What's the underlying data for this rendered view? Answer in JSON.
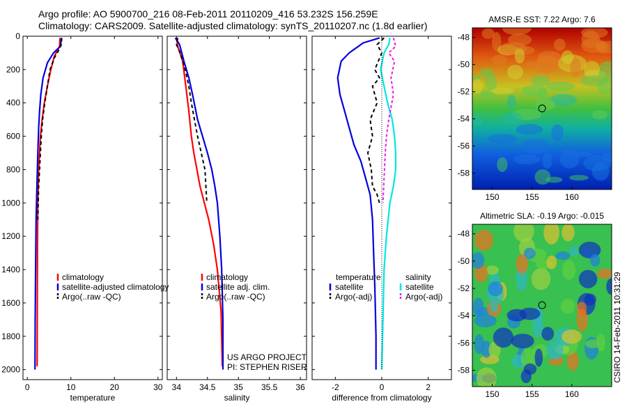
{
  "header": {
    "line1": "Argo profile: AO 5900700_216 08-Feb-2011 20110209_416 53.232S 156.259E",
    "line2": "Climatology: CARS2009. Satellite-adjusted climatology: synTS_20110207.nc (1.8d earlier)"
  },
  "colors": {
    "climatology": "#ff0000",
    "satellite": "#0000dd",
    "argo": "#000000",
    "sat_salinity": "#00e5e5",
    "argo_salinity": "#e61ee6"
  },
  "chart_data": [
    {
      "type": "line",
      "xlabel": "temperature",
      "xlim": [
        -1,
        31
      ],
      "ylim": [
        2060,
        0
      ],
      "xticks": [
        0,
        10,
        20,
        30
      ],
      "yticks": [
        0,
        200,
        400,
        600,
        800,
        1000,
        1200,
        1400,
        1600,
        1800,
        2000
      ],
      "legend": [
        "climatology",
        "satellite-adjusted climatology",
        "Argo(..raw -QC)"
      ],
      "series": [
        {
          "name": "climatology",
          "color": "#ff0000",
          "dash": "",
          "x": [
            7.5,
            7.4,
            6.2,
            5.4,
            4.6,
            3.9,
            3.4,
            3.0,
            2.8,
            2.6,
            2.5,
            2.4,
            2.35,
            2.3,
            2.25
          ],
          "y": [
            10,
            60,
            120,
            200,
            300,
            400,
            500,
            600,
            700,
            800,
            900,
            1000,
            1200,
            1500,
            1980
          ]
        },
        {
          "name": "satellite-adjusted climatology",
          "color": "#0000dd",
          "dash": "",
          "x": [
            7.8,
            7.6,
            6.0,
            4.6,
            3.6,
            3.1,
            2.8,
            2.6,
            2.4,
            2.2,
            2.0,
            1.9,
            1.8,
            1.75
          ],
          "y": [
            10,
            60,
            100,
            160,
            250,
            350,
            450,
            550,
            700,
            900,
            1100,
            1400,
            1700,
            2000
          ]
        },
        {
          "name": "Argo(..raw -QC)",
          "color": "#000000",
          "dash": "5,4",
          "x": [
            7.9,
            7.8,
            7.3,
            6.2,
            5.2,
            4.6,
            4.0,
            3.5,
            3.2,
            3.0,
            2.8,
            2.6,
            2.5,
            2.4
          ],
          "y": [
            10,
            50,
            80,
            130,
            200,
            300,
            400,
            500,
            600,
            700,
            800,
            900,
            1000,
            1100
          ]
        }
      ]
    },
    {
      "type": "line",
      "xlabel": "salinity",
      "xlim": [
        33.85,
        36.1
      ],
      "ylim": [
        2060,
        0
      ],
      "xticks": [
        34,
        34.5,
        35,
        35.5,
        36
      ],
      "xticklabels": [
        "34",
        "34.5",
        "35",
        "35.5",
        "36"
      ],
      "legend": [
        "climatology",
        "satellite adj. clim.",
        "Argo(..raw -QC)"
      ],
      "annotations": [
        "US ARGO PROJECT",
        "PI: STEPHEN RISER"
      ],
      "series": [
        {
          "name": "climatology",
          "color": "#ff0000",
          "dash": "",
          "x": [
            34.0,
            34.02,
            34.1,
            34.15,
            34.2,
            34.24,
            34.28,
            34.33,
            34.38,
            34.45,
            34.52,
            34.6,
            34.66,
            34.72,
            34.74
          ],
          "y": [
            10,
            60,
            150,
            300,
            450,
            600,
            700,
            800,
            900,
            1000,
            1100,
            1250,
            1400,
            1650,
            1980
          ]
        },
        {
          "name": "satellite adj. clim.",
          "color": "#0000dd",
          "dash": "",
          "x": [
            33.98,
            34.05,
            34.12,
            34.2,
            34.26,
            34.34,
            34.42,
            34.5,
            34.57,
            34.62,
            34.66,
            34.7,
            34.73,
            34.75,
            34.75
          ],
          "y": [
            10,
            50,
            150,
            250,
            350,
            500,
            600,
            700,
            800,
            900,
            1000,
            1200,
            1400,
            1700,
            2000
          ]
        },
        {
          "name": "Argo(..raw -QC)",
          "color": "#000000",
          "dash": "5,4",
          "x": [
            34.02,
            34.0,
            34.06,
            34.14,
            34.2,
            34.24,
            34.29,
            34.34,
            34.4,
            34.46,
            34.49
          ],
          "y": [
            10,
            50,
            100,
            200,
            300,
            400,
            500,
            600,
            700,
            800,
            1000
          ]
        }
      ]
    },
    {
      "type": "line",
      "xlabel": "difference from climatology",
      "xlim": [
        -3,
        3
      ],
      "ylim": [
        2060,
        0
      ],
      "xticks": [
        -2,
        0,
        2
      ],
      "legend_left": {
        "title": "temperature",
        "items": [
          "satellite",
          "Argo(-adj)"
        ]
      },
      "legend_right": {
        "title": "salinity",
        "items": [
          "satellite",
          "Argo(-adj)"
        ]
      },
      "series": [
        {
          "name": "temperature satellite",
          "color": "#0000dd",
          "dash": "",
          "x": [
            -0.1,
            -0.8,
            -1.4,
            -1.75,
            -1.9,
            -1.8,
            -1.6,
            -1.4,
            -1.2,
            -0.9,
            -0.7,
            -0.5,
            -0.4,
            -0.35,
            -0.3,
            -0.25,
            -0.25
          ],
          "y": [
            10,
            40,
            100,
            150,
            250,
            350,
            450,
            550,
            650,
            750,
            850,
            950,
            1100,
            1300,
            1500,
            1800,
            2000
          ]
        },
        {
          "name": "temperature Argo(-adj)",
          "color": "#000000",
          "dash": "5,4",
          "x": [
            0.1,
            -0.2,
            0.0,
            -0.3,
            -0.1,
            -0.4,
            -0.2,
            -0.5,
            -0.4,
            -0.6,
            -0.45,
            -0.4,
            -0.2,
            -0.1
          ],
          "y": [
            10,
            50,
            100,
            200,
            250,
            300,
            400,
            500,
            600,
            700,
            800,
            900,
            950,
            1000
          ]
        },
        {
          "name": "salinity satellite",
          "color": "#00e5e5",
          "dash": "",
          "x": [
            0.35,
            0.3,
            0.1,
            -0.05,
            0.1,
            0.25,
            0.45,
            0.55,
            0.6,
            0.6,
            0.5,
            0.35,
            0.2,
            0.1,
            0.05,
            0.0
          ],
          "y": [
            10,
            50,
            100,
            200,
            300,
            400,
            500,
            600,
            700,
            800,
            900,
            1000,
            1200,
            1400,
            1700,
            2000
          ]
        },
        {
          "name": "salinity Argo(-adj)",
          "color": "#e61ee6",
          "dash": "4,3",
          "x": [
            0.5,
            0.6,
            0.3,
            0.55,
            0.4,
            0.5,
            0.3,
            0.2,
            0.15,
            0.1,
            0.05
          ],
          "y": [
            10,
            60,
            100,
            150,
            250,
            350,
            500,
            600,
            700,
            850,
            1000
          ]
        },
        {
          "name": "zero line",
          "color": "#000000",
          "dash": "1,2",
          "x": [
            0,
            0
          ],
          "y": [
            0,
            2000
          ]
        }
      ]
    },
    {
      "type": "heatmap",
      "title": "AMSR-E SST: 7.22 Argo: 7.6",
      "xticks": [
        150,
        155,
        160
      ],
      "yticks": [
        -48,
        -50,
        -52,
        -54,
        -56,
        -58
      ],
      "xlim": [
        147.5,
        165
      ],
      "ylim": [
        -59.2,
        -47.3
      ],
      "marker": {
        "lon": 156.259,
        "lat": -53.232
      }
    },
    {
      "type": "heatmap",
      "title": "Altimetric SLA: -0.19 Argo: -0.015",
      "xticks": [
        150,
        155,
        160
      ],
      "yticks": [
        -48,
        -50,
        -52,
        -54,
        -56,
        -58
      ],
      "xlim": [
        147.5,
        165
      ],
      "ylim": [
        -59.2,
        -47.3
      ],
      "marker": {
        "lon": 156.259,
        "lat": -53.232
      }
    }
  ],
  "footer_vertical": "CSIRO 14-Feb-2011 10:31:29"
}
